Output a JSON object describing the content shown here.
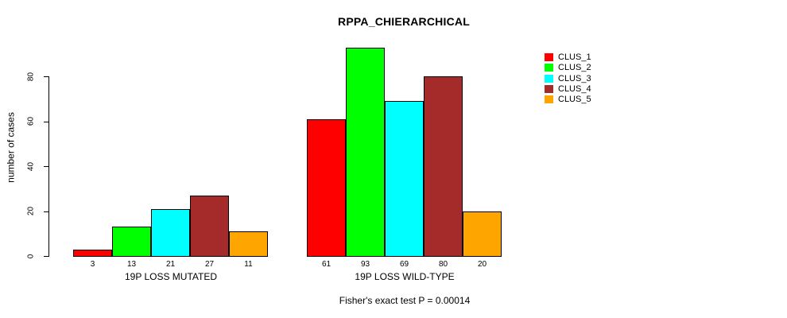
{
  "title": "RPPA_CHIERARCHICAL",
  "chart_data": {
    "type": "bar",
    "title": "RPPA_CHIERARCHICAL",
    "ylabel": "number of cases",
    "xlabel": "",
    "ylim": [
      0,
      93
    ],
    "yticks": [
      0,
      20,
      40,
      60,
      80
    ],
    "grid": false,
    "legend_position": "right",
    "series_names": [
      "CLUS_1",
      "CLUS_2",
      "CLUS_3",
      "CLUS_4",
      "CLUS_5"
    ],
    "series_colors": [
      "#ff0000",
      "#00ff00",
      "#00ffff",
      "#a52a2a",
      "#ffa500"
    ],
    "groups": [
      {
        "label": "19P LOSS MUTATED",
        "values": [
          3,
          13,
          21,
          27,
          11
        ],
        "bar_labels": [
          "3",
          "13",
          "21",
          "27",
          "11"
        ]
      },
      {
        "label": "19P LOSS WILD-TYPE",
        "values": [
          61,
          93,
          69,
          80,
          20
        ],
        "bar_labels": [
          "61",
          "93",
          "69",
          "80",
          "20"
        ]
      }
    ],
    "annotation": "Fisher's exact test P = 0.00014"
  },
  "legend": {
    "items": [
      {
        "label": "CLUS_1",
        "color": "#ff0000"
      },
      {
        "label": "CLUS_2",
        "color": "#00ff00"
      },
      {
        "label": "CLUS_3",
        "color": "#00ffff"
      },
      {
        "label": "CLUS_4",
        "color": "#a52a2a"
      },
      {
        "label": "CLUS_5",
        "color": "#ffa500"
      }
    ]
  },
  "colors": {
    "background": "#ffffff",
    "axis": "#000000",
    "text": "#000000"
  }
}
